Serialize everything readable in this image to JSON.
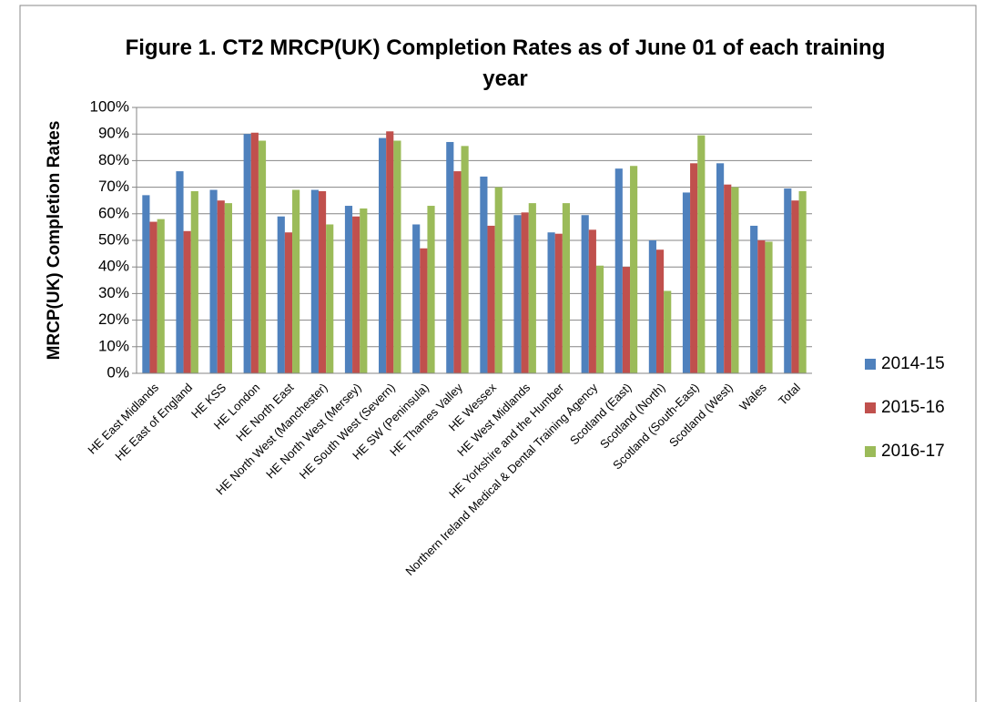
{
  "chart_data": {
    "type": "bar",
    "title": "Figure 1. CT2 MRCP(UK) Completion Rates as of June 01 of each training year",
    "y_label": "MRCP(UK) Completion Rates",
    "categories": [
      "HE East Midlands",
      "HE East of England",
      "HE KSS",
      "HE London",
      "HE North East",
      "HE North West (Manchester)",
      "HE North West (Mersey)",
      "HE South West (Severn)",
      "HE SW (Peninsula)",
      "HE Thames Valley",
      "HE Wessex",
      "HE West Midlands",
      "HE Yorkshire and the Humber",
      "Northern Ireland Medical & Dental Training Agency",
      "Scotland (East)",
      "Scotland (North)",
      "Scotland (South-East)",
      "Scotland (West)",
      "Wales",
      "Total"
    ],
    "series": [
      {
        "name": "2014-15",
        "color": "#4f81bd",
        "values": [
          67,
          76,
          69,
          90,
          59,
          69,
          63,
          88.5,
          56,
          87,
          74,
          59.5,
          53,
          59.5,
          77,
          50,
          68,
          79,
          55.5,
          69.5
        ]
      },
      {
        "name": "2015-16",
        "color": "#c0504d",
        "values": [
          57,
          53.5,
          65,
          90.5,
          53,
          68.5,
          59,
          91,
          47,
          76,
          55.5,
          60.5,
          52.5,
          54,
          40,
          46.5,
          79,
          71,
          50,
          65
        ]
      },
      {
        "name": "2016-17",
        "color": "#9bbb59",
        "values": [
          58,
          68.5,
          64,
          87.5,
          69,
          56,
          62,
          87.5,
          63,
          85.5,
          70,
          64,
          64,
          40.5,
          78,
          31,
          89.5,
          70,
          49.5,
          68.5
        ]
      }
    ],
    "ylim": [
      0,
      100
    ],
    "yticks": [
      {
        "value": 0,
        "label": "0%"
      },
      {
        "value": 10,
        "label": "10%"
      },
      {
        "value": 20,
        "label": "20%"
      },
      {
        "value": 30,
        "label": "30%"
      },
      {
        "value": 40,
        "label": "40%"
      },
      {
        "value": 50,
        "label": "50%"
      },
      {
        "value": 60,
        "label": "60%"
      },
      {
        "value": 70,
        "label": "70%"
      },
      {
        "value": 80,
        "label": "80%"
      },
      {
        "value": 90,
        "label": "90%"
      },
      {
        "value": 100,
        "label": "100%"
      }
    ],
    "grid": true,
    "legend": "right"
  }
}
